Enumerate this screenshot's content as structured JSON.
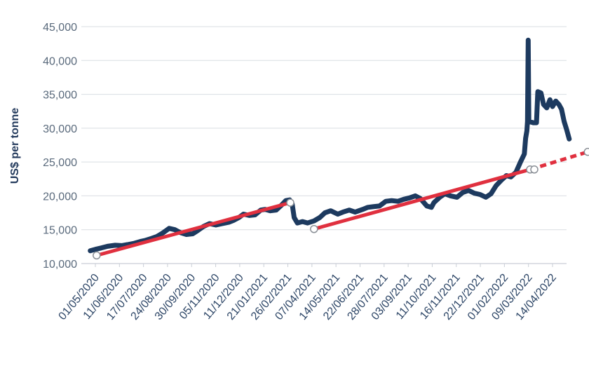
{
  "chart_data": {
    "type": "line",
    "ylabel": "US$ per tonne",
    "xlabel": "",
    "ylim": [
      10000,
      45000
    ],
    "y_ticks": [
      10000,
      15000,
      20000,
      25000,
      30000,
      35000,
      40000,
      45000
    ],
    "y_tick_labels": [
      "10,000",
      "15,000",
      "20,000",
      "25,000",
      "30,000",
      "35,000",
      "40,000",
      "45,000"
    ],
    "grid": true,
    "x_tick_labels": [
      "01/05/2020",
      "11/06/2020",
      "17/07/2020",
      "24/08/2020",
      "30/09/2020",
      "05/11/2020",
      "11/12/2020",
      "21/01/2021",
      "26/02/2021",
      "07/04/2021",
      "14/05/2021",
      "22/06/2021",
      "28/07/2021",
      "03/09/2021",
      "11/10/2021",
      "16/11/2021",
      "22/12/2021",
      "01/02/2022",
      "09/03/2022",
      "14/04/2022"
    ],
    "colors": {
      "price": "#1d3a5f",
      "trend": "#e0303f",
      "grid": "#d9dde2"
    },
    "series": [
      {
        "role": "price",
        "points": [
          [
            "2020-04-23",
            11900
          ],
          [
            "2020-05-01",
            12100
          ],
          [
            "2020-05-10",
            12300
          ],
          [
            "2020-05-20",
            12550
          ],
          [
            "2020-06-01",
            12700
          ],
          [
            "2020-06-11",
            12650
          ],
          [
            "2020-06-20",
            12800
          ],
          [
            "2020-07-01",
            13000
          ],
          [
            "2020-07-10",
            13250
          ],
          [
            "2020-07-17",
            13400
          ],
          [
            "2020-07-27",
            13700
          ],
          [
            "2020-08-05",
            14000
          ],
          [
            "2020-08-14",
            14500
          ],
          [
            "2020-08-24",
            15200
          ],
          [
            "2020-09-02",
            15000
          ],
          [
            "2020-09-10",
            14600
          ],
          [
            "2020-09-20",
            14300
          ],
          [
            "2020-09-30",
            14400
          ],
          [
            "2020-10-08",
            14900
          ],
          [
            "2020-10-17",
            15500
          ],
          [
            "2020-10-26",
            15900
          ],
          [
            "2020-11-05",
            15700
          ],
          [
            "2020-11-15",
            15900
          ],
          [
            "2020-11-25",
            16100
          ],
          [
            "2020-12-03",
            16400
          ],
          [
            "2020-12-11",
            16800
          ],
          [
            "2020-12-18",
            17300
          ],
          [
            "2020-12-27",
            17100
          ],
          [
            "2021-01-05",
            17200
          ],
          [
            "2021-01-14",
            17900
          ],
          [
            "2021-01-21",
            18000
          ],
          [
            "2021-01-29",
            17800
          ],
          [
            "2021-02-07",
            17900
          ],
          [
            "2021-02-15",
            18600
          ],
          [
            "2021-02-22",
            19300
          ],
          [
            "2021-02-28",
            19400
          ],
          [
            "2021-03-04",
            18800
          ],
          [
            "2021-03-07",
            16800
          ],
          [
            "2021-03-12",
            16000
          ],
          [
            "2021-03-20",
            16200
          ],
          [
            "2021-03-28",
            16000
          ],
          [
            "2021-04-07",
            16300
          ],
          [
            "2021-04-16",
            16800
          ],
          [
            "2021-04-24",
            17500
          ],
          [
            "2021-05-03",
            17800
          ],
          [
            "2021-05-14",
            17300
          ],
          [
            "2021-05-22",
            17600
          ],
          [
            "2021-06-01",
            17900
          ],
          [
            "2021-06-10",
            17600
          ],
          [
            "2021-06-22",
            18000
          ],
          [
            "2021-06-30",
            18300
          ],
          [
            "2021-07-08",
            18400
          ],
          [
            "2021-07-18",
            18500
          ],
          [
            "2021-07-28",
            19200
          ],
          [
            "2021-08-06",
            19300
          ],
          [
            "2021-08-16",
            19200
          ],
          [
            "2021-08-25",
            19500
          ],
          [
            "2021-09-03",
            19700
          ],
          [
            "2021-09-12",
            20000
          ],
          [
            "2021-09-20",
            19600
          ],
          [
            "2021-09-30",
            18500
          ],
          [
            "2021-10-07",
            18300
          ],
          [
            "2021-10-11",
            19000
          ],
          [
            "2021-10-20",
            19800
          ],
          [
            "2021-10-28",
            20300
          ],
          [
            "2021-11-06",
            20000
          ],
          [
            "2021-11-16",
            19800
          ],
          [
            "2021-11-25",
            20500
          ],
          [
            "2021-12-04",
            20800
          ],
          [
            "2021-12-13",
            20400
          ],
          [
            "2021-12-22",
            20200
          ],
          [
            "2021-12-31",
            19800
          ],
          [
            "2022-01-08",
            20300
          ],
          [
            "2022-01-16",
            21500
          ],
          [
            "2022-01-24",
            22300
          ],
          [
            "2022-02-01",
            23000
          ],
          [
            "2022-02-08",
            22800
          ],
          [
            "2022-02-16",
            23500
          ],
          [
            "2022-02-23",
            25000
          ],
          [
            "2022-03-01",
            26200
          ],
          [
            "2022-03-03",
            28500
          ],
          [
            "2022-03-05",
            29600
          ],
          [
            "2022-03-06",
            31000
          ],
          [
            "2022-03-07",
            43000
          ],
          [
            "2022-03-08",
            31000
          ],
          [
            "2022-03-15",
            30800
          ],
          [
            "2022-03-20",
            30800
          ],
          [
            "2022-03-22",
            35400
          ],
          [
            "2022-03-27",
            35200
          ],
          [
            "2022-03-31",
            33500
          ],
          [
            "2022-04-05",
            33000
          ],
          [
            "2022-04-10",
            34200
          ],
          [
            "2022-04-14",
            33200
          ],
          [
            "2022-04-19",
            34000
          ],
          [
            "2022-04-24",
            33500
          ],
          [
            "2022-04-28",
            32800
          ],
          [
            "2022-05-02",
            31000
          ],
          [
            "2022-05-06",
            29800
          ],
          [
            "2022-05-10",
            28400
          ]
        ]
      },
      {
        "role": "trend",
        "points": [
          [
            "2020-05-03",
            11200
          ],
          [
            "2021-03-01",
            19000
          ]
        ]
      },
      {
        "role": "trend",
        "points": [
          [
            "2021-04-07",
            15100
          ],
          [
            "2022-03-10",
            23900
          ]
        ]
      },
      {
        "role": "trend-projection",
        "points": [
          [
            "2022-03-10",
            23900
          ],
          [
            "2022-06-08",
            26500
          ]
        ]
      }
    ]
  }
}
